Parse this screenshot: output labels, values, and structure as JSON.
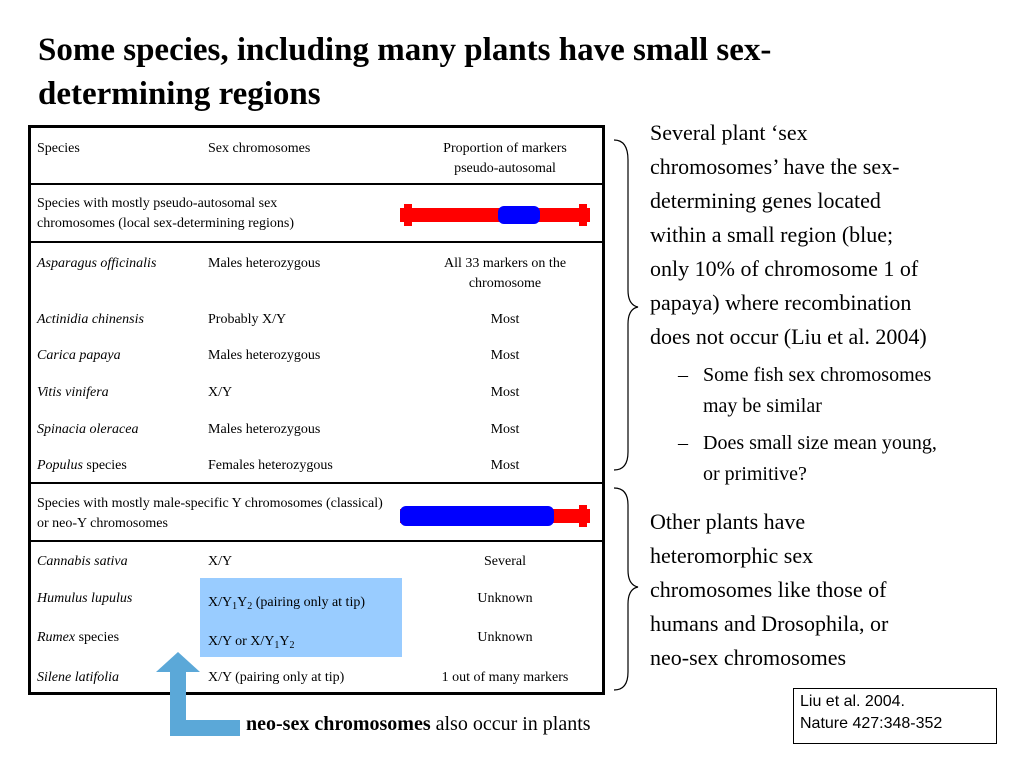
{
  "title": "Some species, including many plants have small sex-determining regions",
  "table": {
    "header": [
      "Species",
      "Sex chromosomes",
      "Proportion of markers pseudo-autosomal"
    ],
    "sections": [
      {
        "label": "Species with mostly pseudo-autosomal sex chromosomes (local sex-determining regions)",
        "rows": [
          {
            "species": [
              "Asparagus officinalis"
            ],
            "sex_chromosomes": [
              "Males heterozygous"
            ],
            "proportion": "All 33 markers on the chromosome"
          },
          {
            "species": [
              "Actinidia chinensis"
            ],
            "sex_chromosomes": [
              "Probably X/Y"
            ],
            "proportion": "Most"
          },
          {
            "species": [
              "Carica papaya"
            ],
            "sex_chromosomes": [
              "Males heterozygous"
            ],
            "proportion": "Most"
          },
          {
            "species": [
              "Vitis vinifera"
            ],
            "sex_chromosomes": [
              "X/Y"
            ],
            "proportion": "Most"
          },
          {
            "species": [
              "Spinacia oleracea"
            ],
            "sex_chromosomes": [
              "Males heterozygous"
            ],
            "proportion": "Most"
          },
          {
            "species": [
              "Populus",
              " species"
            ],
            "sex_chromosomes": [
              "Females heterozygous"
            ],
            "proportion": "Most"
          }
        ]
      },
      {
        "label": "Species with mostly male-specific Y chromosomes (classical) or neo-Y chromosomes",
        "rows": [
          {
            "species": [
              "Cannabis sativa"
            ],
            "sex_chromosomes": [
              "X/Y"
            ],
            "proportion": "Several"
          },
          {
            "species": [
              "Humulus lupulus"
            ],
            "sex_chromosomes": [
              "X/Y",
              "1",
              "Y",
              "2",
              " (pairing only at tip)"
            ],
            "proportion": "Unknown"
          },
          {
            "species": [
              "Rumex",
              " species"
            ],
            "sex_chromosomes": [
              "X/Y or X/Y",
              "1",
              "Y",
              "2"
            ],
            "proportion": "Unknown"
          },
          {
            "species": [
              "Silene latifolia"
            ],
            "sex_chromosomes": [
              "X/Y (pairing only at tip)"
            ],
            "proportion": "1 out of many markers"
          }
        ]
      }
    ]
  },
  "notes": {
    "paragraph1": [
      "Several plant ‘sex",
      "chromosomes’ have the sex-",
      "determining genes located",
      "within a small region (blue;",
      "only 10% of chromosome 1 of",
      "papaya) where recombination",
      "does not occur (Liu et al. 2004)"
    ],
    "bullets": [
      {
        "marker": "–",
        "lines": [
          "Some fish sex chromosomes",
          "may be similar"
        ]
      },
      {
        "marker": "–",
        "lines": [
          "Does small size mean young,",
          "or primitive?"
        ]
      }
    ],
    "paragraph2": [
      "Other plants have",
      "heteromorphic sex",
      "chromosomes like those of",
      "humans and Drosophila, or",
      "neo-sex chromosomes"
    ]
  },
  "caption": {
    "bold": "neo-sex chromosomes",
    "rest": " also occur in plants"
  },
  "citation": [
    "Liu et al.  2004.",
    "Nature 427:348-352"
  ]
}
